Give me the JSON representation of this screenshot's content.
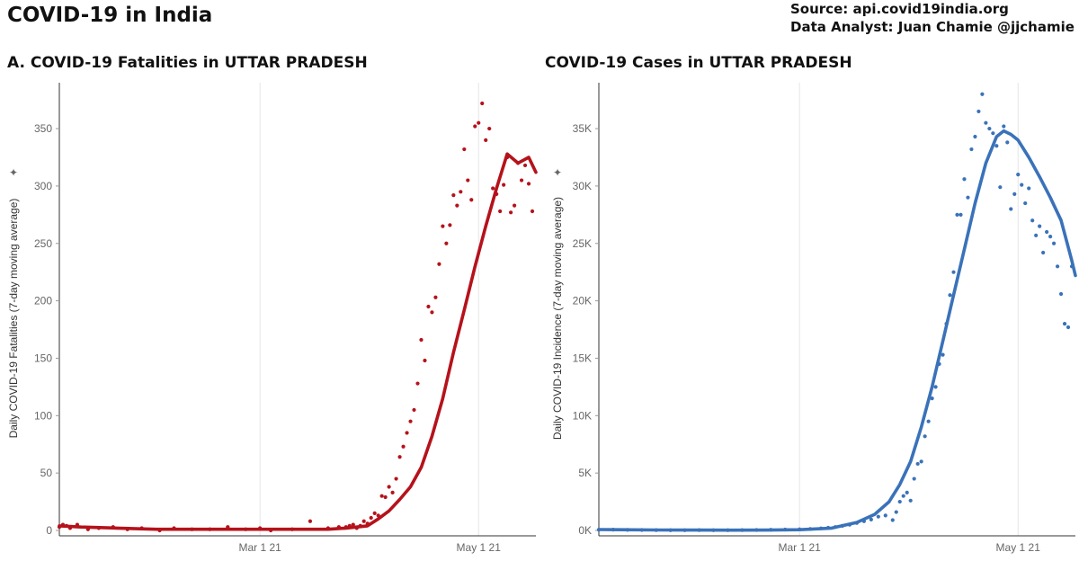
{
  "header": {
    "title": "COVID-19 in India",
    "source_line": "Source: api.covid19india.org",
    "analyst_line": "Data Analyst:  Juan Chamie @jjchamie"
  },
  "colors": {
    "fatalities": "#b5121b",
    "cases": "#3a72b9",
    "grid": "#e6e6e6",
    "axis": "#333333"
  },
  "chart_data": [
    {
      "type": "line",
      "title": "A. COVID-19 Fatalities in UTTAR PRADESH",
      "ylabel": "Daily COVID-19 Fatalities (7-day moving average)",
      "ylim": [
        0,
        390
      ],
      "yticks": [
        0,
        50,
        100,
        150,
        200,
        250,
        300,
        350
      ],
      "ytick_labels": [
        "0",
        "50",
        "100",
        "150",
        "200",
        "250",
        "300",
        "350"
      ],
      "xlim": [
        "2021-01-04",
        "2021-05-17"
      ],
      "xticks": [
        "2021-03-01",
        "2021-05-01"
      ],
      "xtick_labels": [
        "Mar 1 21",
        "May 1 21"
      ],
      "grid": "vertical",
      "series": [
        {
          "kind": "line",
          "x": [
            "2021-01-04",
            "2021-01-10",
            "2021-01-20",
            "2021-01-31",
            "2021-02-10",
            "2021-02-20",
            "2021-03-01",
            "2021-03-10",
            "2021-03-20",
            "2021-03-25",
            "2021-03-31",
            "2021-04-03",
            "2021-04-06",
            "2021-04-09",
            "2021-04-12",
            "2021-04-15",
            "2021-04-18",
            "2021-04-21",
            "2021-04-24",
            "2021-04-27",
            "2021-04-30",
            "2021-05-03",
            "2021-05-06",
            "2021-05-09",
            "2021-05-12",
            "2021-05-15",
            "2021-05-17"
          ],
          "y": [
            4,
            3,
            2,
            1,
            1,
            1,
            1,
            1,
            1,
            2,
            4,
            10,
            17,
            27,
            38,
            55,
            82,
            115,
            155,
            192,
            230,
            265,
            298,
            328,
            320,
            325,
            312
          ]
        },
        {
          "kind": "scatter",
          "x": [
            "2021-01-04",
            "2021-01-05",
            "2021-01-06",
            "2021-01-07",
            "2021-01-09",
            "2021-01-12",
            "2021-01-15",
            "2021-01-19",
            "2021-01-23",
            "2021-01-27",
            "2021-02-01",
            "2021-02-05",
            "2021-02-10",
            "2021-02-15",
            "2021-02-20",
            "2021-02-25",
            "2021-03-01",
            "2021-03-04",
            "2021-03-10",
            "2021-03-15",
            "2021-03-20",
            "2021-03-23",
            "2021-03-25",
            "2021-03-26",
            "2021-03-27",
            "2021-03-28",
            "2021-03-29",
            "2021-03-30",
            "2021-03-31",
            "2021-04-01",
            "2021-04-02",
            "2021-04-03",
            "2021-04-04",
            "2021-04-05",
            "2021-04-06",
            "2021-04-07",
            "2021-04-08",
            "2021-04-09",
            "2021-04-10",
            "2021-04-11",
            "2021-04-12",
            "2021-04-13",
            "2021-04-14",
            "2021-04-15",
            "2021-04-16",
            "2021-04-17",
            "2021-04-18",
            "2021-04-19",
            "2021-04-20",
            "2021-04-21",
            "2021-04-22",
            "2021-04-23",
            "2021-04-24",
            "2021-04-25",
            "2021-04-26",
            "2021-04-27",
            "2021-04-28",
            "2021-04-29",
            "2021-04-30",
            "2021-05-01",
            "2021-05-02",
            "2021-05-03",
            "2021-05-04",
            "2021-05-05",
            "2021-05-06",
            "2021-05-07",
            "2021-05-08",
            "2021-05-09",
            "2021-05-10",
            "2021-05-11",
            "2021-05-12",
            "2021-05-13",
            "2021-05-14",
            "2021-05-15",
            "2021-05-16"
          ],
          "y": [
            3,
            5,
            4,
            2,
            5,
            1,
            2,
            3,
            1,
            2,
            0,
            2,
            1,
            1,
            3,
            1,
            2,
            0,
            1,
            8,
            2,
            3,
            3,
            4,
            5,
            2,
            4,
            8,
            6,
            11,
            15,
            13,
            30,
            29,
            38,
            33,
            45,
            64,
            73,
            85,
            95,
            105,
            128,
            166,
            148,
            195,
            190,
            203,
            232,
            265,
            250,
            266,
            292,
            283,
            295,
            332,
            305,
            288,
            352,
            355,
            372,
            340,
            350,
            298,
            293,
            278,
            301,
            325,
            277,
            283,
            320,
            305,
            318,
            302,
            278
          ]
        }
      ]
    },
    {
      "type": "line",
      "title": "COVID-19 Cases in UTTAR PRADESH",
      "ylabel": "Daily COVID-19 Incidence (7-day moving average)",
      "ylim": [
        0,
        39000
      ],
      "yticks": [
        0,
        5000,
        10000,
        15000,
        20000,
        25000,
        30000,
        35000
      ],
      "ytick_labels": [
        "0K",
        "5K",
        "10K",
        "15K",
        "20K",
        "25K",
        "30K",
        "35K"
      ],
      "xlim": [
        "2021-01-04",
        "2021-05-17"
      ],
      "xticks": [
        "2021-03-01",
        "2021-05-01"
      ],
      "xtick_labels": [
        "Mar 1 21",
        "May 1 21"
      ],
      "grid": "vertical",
      "series": [
        {
          "kind": "line",
          "x": [
            "2021-01-04",
            "2021-01-10",
            "2021-01-20",
            "2021-01-31",
            "2021-02-10",
            "2021-02-20",
            "2021-03-01",
            "2021-03-10",
            "2021-03-17",
            "2021-03-22",
            "2021-03-26",
            "2021-03-29",
            "2021-04-01",
            "2021-04-04",
            "2021-04-07",
            "2021-04-10",
            "2021-04-13",
            "2021-04-16",
            "2021-04-19",
            "2021-04-22",
            "2021-04-25",
            "2021-04-27",
            "2021-04-29",
            "2021-05-01",
            "2021-05-04",
            "2021-05-07",
            "2021-05-10",
            "2021-05-13",
            "2021-05-16",
            "2021-05-17"
          ],
          "y": [
            80,
            60,
            40,
            30,
            20,
            30,
            60,
            200,
            700,
            1400,
            2500,
            4000,
            6000,
            9000,
            12500,
            16500,
            20500,
            24500,
            28500,
            32000,
            34300,
            34800,
            34500,
            34000,
            32500,
            30800,
            29000,
            27000,
            23500,
            22200
          ]
        },
        {
          "kind": "scatter",
          "x": [
            "2021-01-04",
            "2021-01-08",
            "2021-01-12",
            "2021-01-16",
            "2021-01-20",
            "2021-01-24",
            "2021-01-28",
            "2021-02-01",
            "2021-02-05",
            "2021-02-09",
            "2021-02-13",
            "2021-02-17",
            "2021-02-21",
            "2021-02-25",
            "2021-03-01",
            "2021-03-04",
            "2021-03-07",
            "2021-03-09",
            "2021-03-11",
            "2021-03-13",
            "2021-03-15",
            "2021-03-17",
            "2021-03-19",
            "2021-03-21",
            "2021-03-23",
            "2021-03-25",
            "2021-03-27",
            "2021-03-28",
            "2021-03-29",
            "2021-03-30",
            "2021-03-31",
            "2021-04-01",
            "2021-04-02",
            "2021-04-03",
            "2021-04-04",
            "2021-04-05",
            "2021-04-06",
            "2021-04-07",
            "2021-04-08",
            "2021-04-09",
            "2021-04-10",
            "2021-04-11",
            "2021-04-12",
            "2021-04-13",
            "2021-04-14",
            "2021-04-15",
            "2021-04-16",
            "2021-04-17",
            "2021-04-18",
            "2021-04-19",
            "2021-04-20",
            "2021-04-21",
            "2021-04-22",
            "2021-04-23",
            "2021-04-24",
            "2021-04-25",
            "2021-04-26",
            "2021-04-27",
            "2021-04-28",
            "2021-04-29",
            "2021-04-30",
            "2021-05-01",
            "2021-05-02",
            "2021-05-03",
            "2021-05-04",
            "2021-05-05",
            "2021-05-06",
            "2021-05-07",
            "2021-05-08",
            "2021-05-09",
            "2021-05-10",
            "2021-05-11",
            "2021-05-12",
            "2021-05-13",
            "2021-05-14",
            "2021-05-15",
            "2021-05-16"
          ],
          "y": [
            60,
            70,
            50,
            40,
            30,
            20,
            20,
            30,
            20,
            20,
            30,
            40,
            60,
            80,
            100,
            130,
            180,
            240,
            300,
            400,
            500,
            650,
            800,
            950,
            1200,
            1300,
            900,
            1600,
            2500,
            3000,
            3300,
            2600,
            4500,
            5800,
            6000,
            8200,
            9500,
            11500,
            12500,
            14500,
            15300,
            18000,
            20500,
            22500,
            27500,
            27500,
            30600,
            29000,
            33200,
            34300,
            36500,
            38000,
            35500,
            35000,
            34600,
            33500,
            29900,
            35200,
            33800,
            28000,
            29300,
            31000,
            30100,
            28500,
            29800,
            27000,
            25700,
            26500,
            24200,
            26000,
            25600,
            25000,
            23000,
            20600,
            18000,
            17700,
            23000
          ]
        }
      ]
    }
  ]
}
